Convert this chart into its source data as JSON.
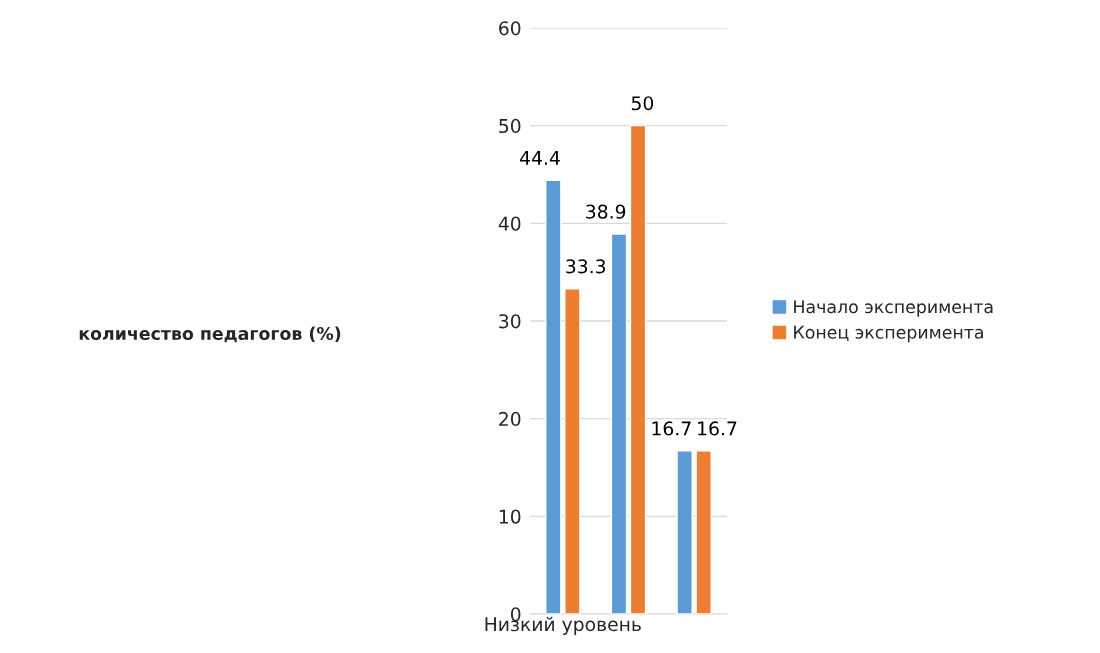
{
  "chart_data": {
    "type": "bar",
    "annotations": [
      "количество педагогов (%)"
    ],
    "categories": [
      "Низкий уровень",
      null,
      null
    ],
    "series": [
      {
        "name": "Начало эксперимента",
        "color": "#5b9bd5",
        "values": [
          44.4,
          38.9,
          16.7
        ]
      },
      {
        "name": "Конец эксперимента",
        "color": "#ed7d31",
        "values": [
          33.3,
          50,
          16.7
        ]
      }
    ],
    "ylim": [
      0,
      60
    ],
    "yticks": [
      0,
      10,
      20,
      30,
      40,
      50,
      60
    ],
    "grid": "y",
    "legend": "right",
    "data_labels": true
  }
}
